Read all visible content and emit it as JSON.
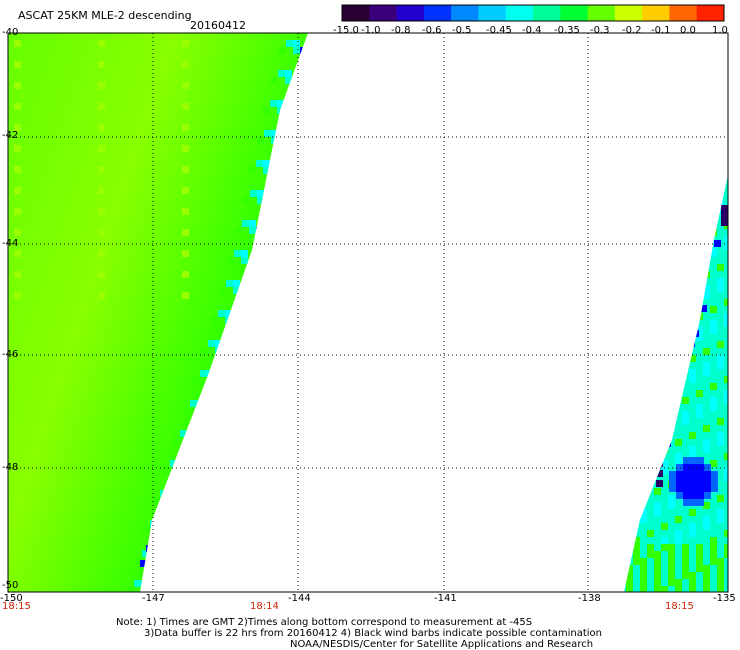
{
  "header": {
    "title": "ASCAT 25KM MLE-2 descending",
    "date": "20160412"
  },
  "colorbar": {
    "labels": [
      "-15.0",
      "-1.0",
      "-0.8",
      "-0.6",
      "-0.5",
      "-0.45",
      "-0.4",
      "-0.35",
      "-0.3",
      "-0.2",
      "-0.1",
      "0.0",
      "1.0"
    ],
    "colors": [
      "#2a0033",
      "#3a007a",
      "#2200cc",
      "#0033ff",
      "#0088ff",
      "#00ccff",
      "#00ffee",
      "#00ff99",
      "#00ff33",
      "#66ff00",
      "#ccff00",
      "#ffcc00",
      "#ff6600",
      "#ff2200"
    ]
  },
  "map": {
    "lat_labels": [
      "-40",
      "-42",
      "-44",
      "-46",
      "-48",
      "-50"
    ],
    "lon_labels": [
      "-150",
      "-147",
      "-144",
      "-141",
      "-138",
      "-135"
    ],
    "time_labels": [
      "18:15",
      "18:14",
      "18:15"
    ],
    "colors": {
      "green": "#33ff00",
      "lime": "#99ff00",
      "cyan": "#00ffcc",
      "aqua": "#00ffff",
      "blue": "#0000ff",
      "navy": "#2a0066"
    }
  },
  "notes": {
    "line1": "Note: 1) Times are GMT 2)Times along bottom correspond to measurement at -45S",
    "line2": "3)Data buffer is 22 hrs from 20160412 4) Black wind barbs indicate possible contamination",
    "line3": "NOAA/NESDIS/Center for Satellite Applications and Research"
  }
}
